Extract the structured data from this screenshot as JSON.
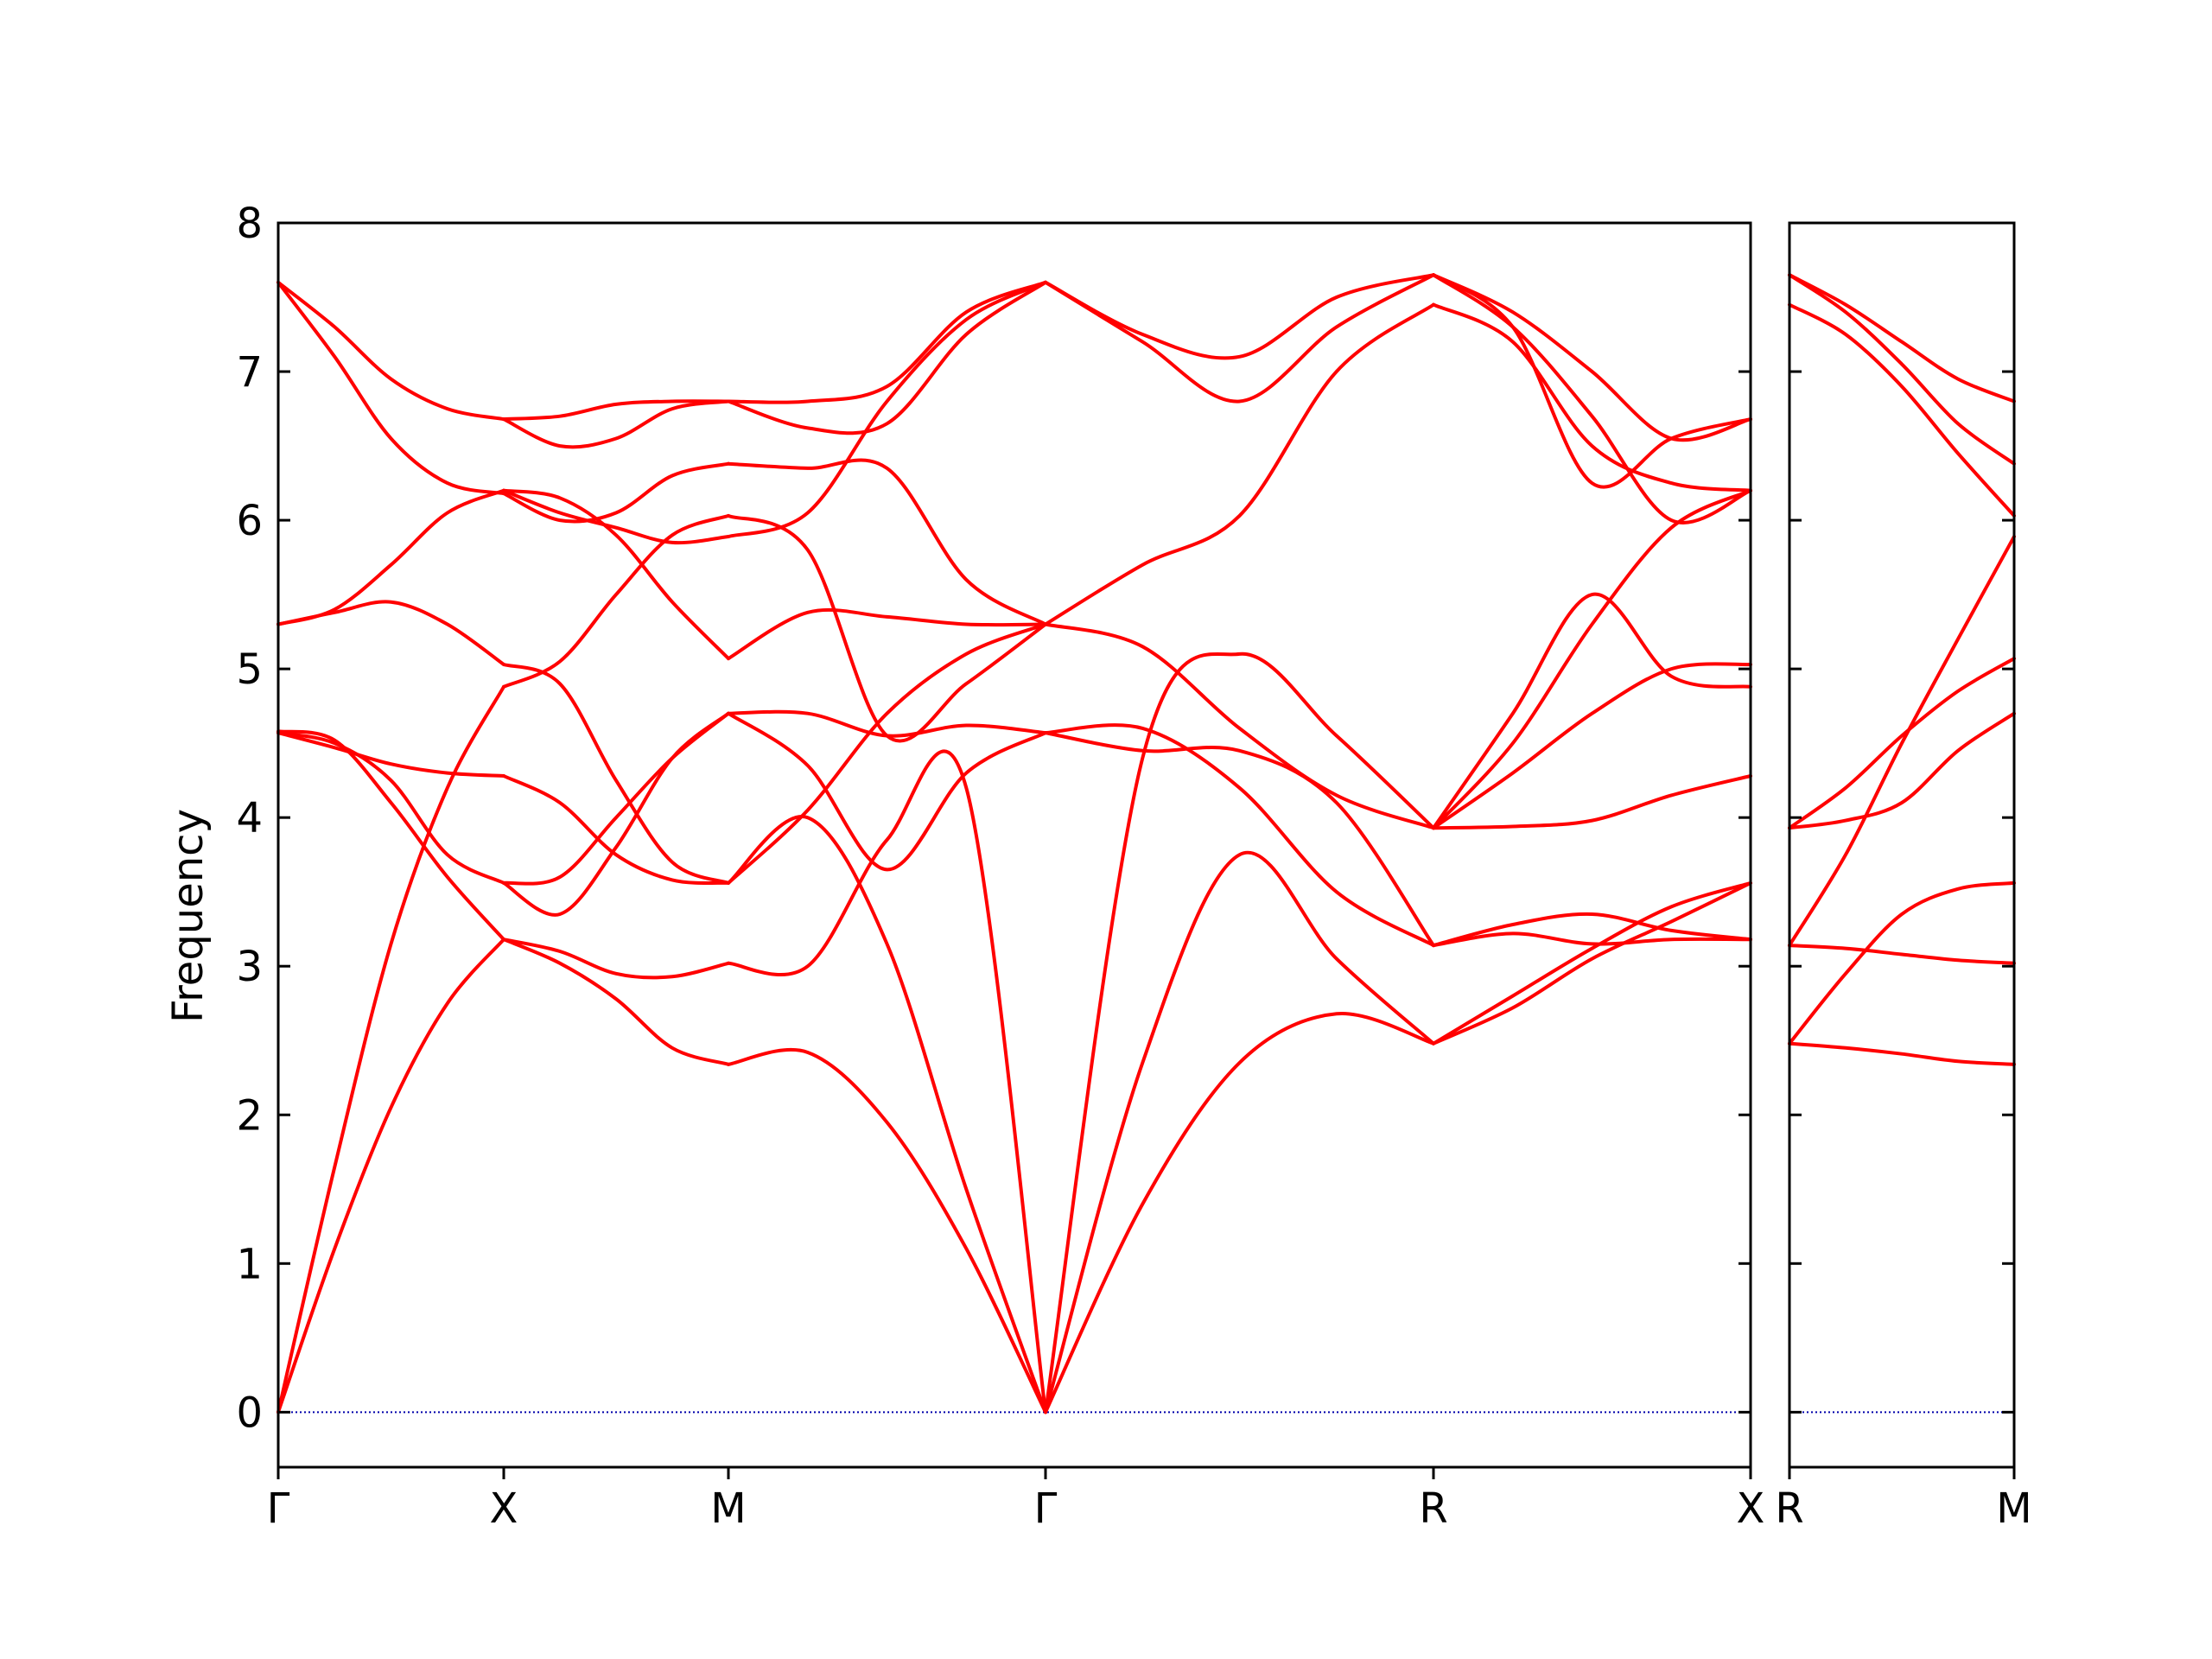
{
  "chart_data": {
    "type": "line",
    "title": "",
    "ylabel": "Frequency",
    "ylim": [
      -0.37,
      8.0
    ],
    "yticks": [
      "0",
      "1",
      "2",
      "3",
      "4",
      "5",
      "6",
      "7",
      "8"
    ],
    "grid": false,
    "zero_line_color": "#0000aa",
    "band_color": "#ff0000",
    "panels": [
      {
        "path": [
          "Γ",
          "X",
          "M",
          "Γ",
          "R",
          "X"
        ],
        "segments": [
          {
            "from": "Γ",
            "to": "X",
            "x": [
              0,
              0.25,
              0.5,
              0.75,
              1.0
            ],
            "bands": [
              [
                0.0,
                1.1,
                2.05,
                2.75,
                3.18
              ],
              [
                0.0,
                1.65,
                3.15,
                4.2,
                4.88
              ],
              [
                4.57,
                4.47,
                4.36,
                4.3,
                4.28
              ],
              [
                4.57,
                4.5,
                4.25,
                3.75,
                3.56
              ],
              [
                4.58,
                4.52,
                4.1,
                3.6,
                3.18
              ],
              [
                5.3,
                5.38,
                5.45,
                5.3,
                5.03
              ],
              [
                5.3,
                5.4,
                5.7,
                6.05,
                6.2
              ],
              [
                7.6,
                7.3,
                6.95,
                6.75,
                6.68
              ],
              [
                7.6,
                7.1,
                6.55,
                6.25,
                6.18
              ]
            ]
          },
          {
            "from": "X",
            "to": "M",
            "x": [
              0,
              0.25,
              0.5,
              0.75,
              1.0
            ],
            "bands": [
              [
                3.18,
                3.02,
                2.78,
                2.45,
                2.34
              ],
              [
                3.18,
                3.1,
                2.95,
                2.93,
                3.02
              ],
              [
                3.56,
                3.6,
                4.0,
                4.4,
                4.7
              ],
              [
                3.56,
                3.35,
                3.8,
                4.4,
                4.7
              ],
              [
                4.28,
                4.1,
                3.75,
                3.58,
                3.56
              ],
              [
                4.88,
                5.05,
                5.5,
                5.9,
                6.03
              ],
              [
                5.03,
                4.9,
                4.25,
                3.7,
                3.56
              ],
              [
                6.18,
                6.0,
                6.05,
                6.3,
                6.38
              ],
              [
                6.2,
                6.05,
                5.95,
                5.85,
                5.89
              ],
              [
                6.2,
                6.15,
                5.9,
                5.45,
                5.07
              ],
              [
                6.68,
                6.5,
                6.55,
                6.75,
                6.8
              ],
              [
                6.68,
                6.7,
                6.78,
                6.8,
                6.8
              ]
            ]
          },
          {
            "from": "M",
            "to": "Γ",
            "x": [
              0,
              0.25,
              0.5,
              0.75,
              1.0
            ],
            "bands": [
              [
                2.34,
                2.42,
                1.95,
                1.1,
                0.0
              ],
              [
                3.02,
                3.0,
                3.85,
                4.2,
                0.0
              ],
              [
                3.56,
                4.0,
                3.15,
                1.5,
                0.0
              ],
              [
                3.56,
                4.05,
                4.7,
                5.1,
                5.3
              ],
              [
                4.7,
                4.7,
                4.55,
                4.62,
                4.57
              ],
              [
                4.7,
                4.35,
                3.65,
                4.3,
                4.57
              ],
              [
                5.07,
                5.38,
                5.35,
                5.3,
                5.3
              ],
              [
                6.03,
                5.8,
                4.55,
                4.9,
                5.3
              ],
              [
                6.38,
                6.35,
                6.35,
                5.6,
                5.3
              ],
              [
                5.89,
                6.05,
                6.8,
                7.35,
                7.6
              ],
              [
                6.8,
                6.62,
                6.65,
                7.25,
                7.6
              ],
              [
                6.8,
                6.8,
                6.9,
                7.4,
                7.6
              ]
            ]
          },
          {
            "from": "Γ",
            "to": "R",
            "x": [
              0,
              0.25,
              0.5,
              0.75,
              1.0
            ],
            "bands": [
              [
                0.0,
                1.4,
                2.35,
                2.68,
                2.48
              ],
              [
                0.0,
                2.35,
                3.75,
                3.05,
                2.48
              ],
              [
                4.57,
                4.6,
                4.2,
                3.5,
                3.14
              ],
              [
                4.57,
                4.45,
                4.45,
                4.1,
                3.14
              ],
              [
                0.0,
                4.4,
                5.1,
                4.55,
                3.93
              ],
              [
                5.3,
                5.15,
                4.6,
                4.15,
                3.93
              ],
              [
                5.3,
                5.7,
                6.03,
                7.0,
                7.45
              ],
              [
                7.6,
                7.2,
                6.8,
                7.3,
                7.65
              ],
              [
                7.6,
                7.25,
                7.1,
                7.5,
                7.65
              ]
            ]
          },
          {
            "from": "R",
            "to": "X",
            "x": [
              0,
              0.25,
              0.5,
              0.75,
              1.0
            ],
            "bands": [
              [
                2.48,
                2.72,
                3.05,
                3.3,
                3.56
              ],
              [
                2.48,
                2.8,
                3.12,
                3.4,
                3.56
              ],
              [
                3.14,
                3.28,
                3.35,
                3.24,
                3.18
              ],
              [
                3.14,
                3.22,
                3.15,
                3.18,
                3.18
              ],
              [
                3.93,
                3.94,
                3.98,
                4.15,
                4.28
              ],
              [
                3.93,
                4.3,
                4.7,
                5.0,
                5.03
              ],
              [
                3.93,
                4.7,
                5.5,
                4.95,
                4.88
              ],
              [
                7.45,
                7.2,
                6.5,
                6.25,
                6.2
              ],
              [
                7.65,
                7.3,
                6.7,
                6.0,
                6.2
              ],
              [
                7.65,
                7.4,
                7.0,
                6.55,
                6.68
              ],
              [
                7.65,
                7.3,
                6.25,
                6.55,
                6.68
              ],
              [
                3.93,
                4.5,
                5.3,
                5.95,
                6.2
              ]
            ]
          }
        ]
      },
      {
        "path": [
          "R",
          "M"
        ],
        "segments": [
          {
            "from": "R",
            "to": "M",
            "x": [
              0,
              0.25,
              0.5,
              0.75,
              1.0
            ],
            "bands": [
              [
                2.48,
                2.45,
                2.41,
                2.36,
                2.34
              ],
              [
                2.48,
                2.95,
                3.35,
                3.52,
                3.56
              ],
              [
                3.14,
                3.12,
                3.08,
                3.04,
                3.02
              ],
              [
                3.14,
                3.75,
                4.5,
                5.2,
                5.89
              ],
              [
                3.93,
                3.98,
                4.1,
                4.45,
                4.7
              ],
              [
                3.93,
                4.2,
                4.55,
                4.85,
                5.07
              ],
              [
                7.45,
                7.25,
                6.9,
                6.45,
                6.03
              ],
              [
                7.65,
                7.4,
                7.05,
                6.65,
                6.38
              ],
              [
                7.65,
                7.45,
                7.2,
                6.95,
                6.8
              ]
            ]
          }
        ]
      }
    ]
  }
}
